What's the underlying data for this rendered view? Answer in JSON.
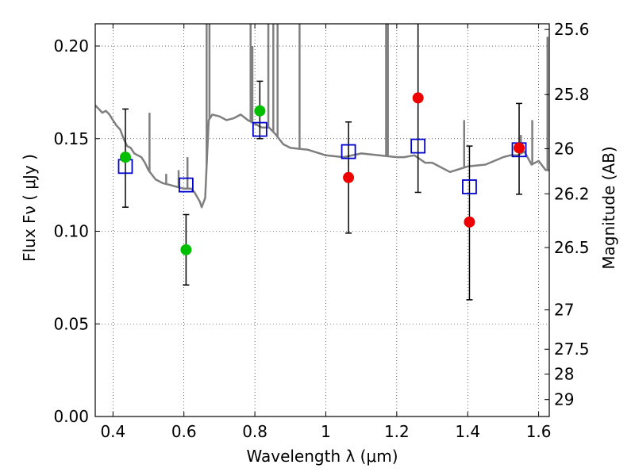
{
  "chart_data": {
    "type": "scatter",
    "title": "",
    "xlabel": "Wavelength  λ (μm)",
    "ylabel": "Flux  Fν  ( μJy )",
    "y2label": "Magnitude (AB)",
    "xlim": [
      0.35,
      1.63
    ],
    "ylim": [
      0.0,
      0.212
    ],
    "grid": true,
    "x_ticks": [
      "0.4",
      "0.6",
      "0.8",
      "1",
      "1.2",
      "1.4",
      "1.6"
    ],
    "y_ticks": [
      "0.00",
      "0.05",
      "0.10",
      "0.15",
      "0.20"
    ],
    "y2_ticks": [
      {
        "mag": 25.6,
        "label": "25.6"
      },
      {
        "mag": 25.8,
        "label": "25.8"
      },
      {
        "mag": 26.0,
        "label": "26"
      },
      {
        "mag": 26.2,
        "label": "26.2"
      },
      {
        "mag": 26.5,
        "label": "26.5"
      },
      {
        "mag": 27.0,
        "label": "27"
      },
      {
        "mag": 27.5,
        "label": "27.5"
      },
      {
        "mag": 28.0,
        "label": "28"
      },
      {
        "mag": 29.0,
        "label": "29"
      }
    ],
    "series": [
      {
        "kind": "model-spectrum",
        "color": "#7f7f7f",
        "x": [
          0.35,
          0.36,
          0.37,
          0.38,
          0.39,
          0.4,
          0.41,
          0.42,
          0.43,
          0.44,
          0.45,
          0.46,
          0.47,
          0.48,
          0.49,
          0.5,
          0.52,
          0.54,
          0.56,
          0.58,
          0.6,
          0.62,
          0.63,
          0.645,
          0.65,
          0.66,
          0.665,
          0.67,
          0.68,
          0.7,
          0.72,
          0.74,
          0.76,
          0.78,
          0.8,
          0.82,
          0.84,
          0.86,
          0.88,
          0.9,
          0.95,
          1.0,
          1.05,
          1.1,
          1.15,
          1.2,
          1.22,
          1.25,
          1.28,
          1.3,
          1.35,
          1.4,
          1.45,
          1.5,
          1.52,
          1.54,
          1.56,
          1.58,
          1.6,
          1.62,
          1.63
        ],
        "y": [
          0.168,
          0.166,
          0.164,
          0.165,
          0.163,
          0.16,
          0.157,
          0.155,
          0.15,
          0.146,
          0.145,
          0.142,
          0.141,
          0.14,
          0.137,
          0.133,
          0.128,
          0.126,
          0.125,
          0.124,
          0.123,
          0.123,
          0.121,
          0.116,
          0.113,
          0.118,
          0.14,
          0.16,
          0.163,
          0.162,
          0.16,
          0.161,
          0.163,
          0.16,
          0.158,
          0.156,
          0.156,
          0.152,
          0.147,
          0.145,
          0.144,
          0.141,
          0.14,
          0.142,
          0.141,
          0.14,
          0.14,
          0.141,
          0.137,
          0.137,
          0.132,
          0.135,
          0.136,
          0.14,
          0.141,
          0.141,
          0.143,
          0.136,
          0.138,
          0.133,
          0.133
        ]
      },
      {
        "kind": "model-photometry",
        "marker": "open-square",
        "color": "#0000cc",
        "x": [
          0.435,
          0.606,
          0.814,
          1.064,
          1.26,
          1.405,
          1.545
        ],
        "y": [
          0.135,
          0.125,
          0.155,
          0.143,
          0.146,
          0.124,
          0.144
        ]
      },
      {
        "kind": "observed-detections",
        "marker": "filled-circle",
        "color": "#00bf00",
        "x": [
          0.435,
          0.606,
          0.814
        ],
        "y": [
          0.14,
          0.09,
          0.165
        ],
        "yerr_low": [
          0.113,
          0.071,
          0.15
        ],
        "yerr_high": [
          0.166,
          0.109,
          0.181
        ]
      },
      {
        "kind": "observed-lowsn",
        "marker": "filled-circle",
        "color": "#ee0000",
        "x": [
          1.064,
          1.26,
          1.405,
          1.545
        ],
        "y": [
          0.129,
          0.172,
          0.105,
          0.145
        ],
        "yerr_low": [
          0.099,
          0.121,
          0.063,
          0.12
        ],
        "yerr_high": [
          0.159,
          0.22,
          0.146,
          0.169
        ]
      }
    ],
    "emission_lines": [
      {
        "x": 0.664,
        "ytop": 0.212
      },
      {
        "x": 0.672,
        "ytop": 0.212
      },
      {
        "x": 0.503,
        "ytop": 0.164
      },
      {
        "x": 0.788,
        "ytop": 0.212
      },
      {
        "x": 0.793,
        "ytop": 0.2
      },
      {
        "x": 0.838,
        "ytop": 0.212
      },
      {
        "x": 0.852,
        "ytop": 0.212
      },
      {
        "x": 0.864,
        "ytop": 0.212
      },
      {
        "x": 0.926,
        "ytop": 0.212
      },
      {
        "x": 1.17,
        "ytop": 0.212
      },
      {
        "x": 1.175,
        "ytop": 0.212
      },
      {
        "x": 1.39,
        "ytop": 0.16
      },
      {
        "x": 1.55,
        "ytop": 0.152
      },
      {
        "x": 1.582,
        "ytop": 0.16
      },
      {
        "x": 1.625,
        "ytop": 0.205
      },
      {
        "x": 0.61,
        "ytop": 0.14
      },
      {
        "x": 0.585,
        "ytop": 0.133
      },
      {
        "x": 0.55,
        "ytop": 0.131
      }
    ]
  }
}
